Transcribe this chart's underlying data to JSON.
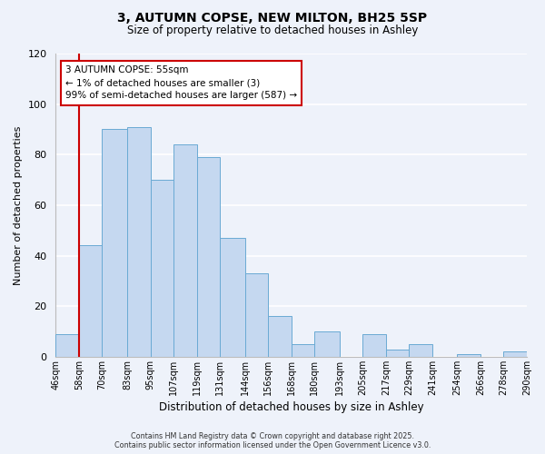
{
  "title1": "3, AUTUMN COPSE, NEW MILTON, BH25 5SP",
  "title2": "Size of property relative to detached houses in Ashley",
  "xlabel": "Distribution of detached houses by size in Ashley",
  "ylabel": "Number of detached properties",
  "bar_color": "#c5d8f0",
  "bar_edge_color": "#6aaad4",
  "background_color": "#eef2fa",
  "grid_color": "#ffffff",
  "annotation_box_color": "#cc0000",
  "annotation_line_color": "#cc0000",
  "property_line_x": 58,
  "annotation_line1": "3 AUTUMN COPSE: 55sqm",
  "annotation_line2": "← 1% of detached houses are smaller (3)",
  "annotation_line3": "99% of semi-detached houses are larger (587) →",
  "footer1": "Contains HM Land Registry data © Crown copyright and database right 2025.",
  "footer2": "Contains public sector information licensed under the Open Government Licence v3.0.",
  "bin_labels": [
    "46sqm",
    "58sqm",
    "70sqm",
    "83sqm",
    "95sqm",
    "107sqm",
    "119sqm",
    "131sqm",
    "144sqm",
    "156sqm",
    "168sqm",
    "180sqm",
    "193sqm",
    "205sqm",
    "217sqm",
    "229sqm",
    "241sqm",
    "254sqm",
    "266sqm",
    "278sqm",
    "290sqm"
  ],
  "bin_edges": [
    46,
    58,
    70,
    83,
    95,
    107,
    119,
    131,
    144,
    156,
    168,
    180,
    193,
    205,
    217,
    229,
    241,
    254,
    266,
    278,
    290
  ],
  "bar_heights": [
    9,
    44,
    90,
    91,
    70,
    84,
    79,
    47,
    33,
    16,
    5,
    10,
    0,
    9,
    3,
    5,
    0,
    1,
    0,
    2
  ],
  "ylim": [
    0,
    120
  ],
  "yticks": [
    0,
    20,
    40,
    60,
    80,
    100,
    120
  ]
}
